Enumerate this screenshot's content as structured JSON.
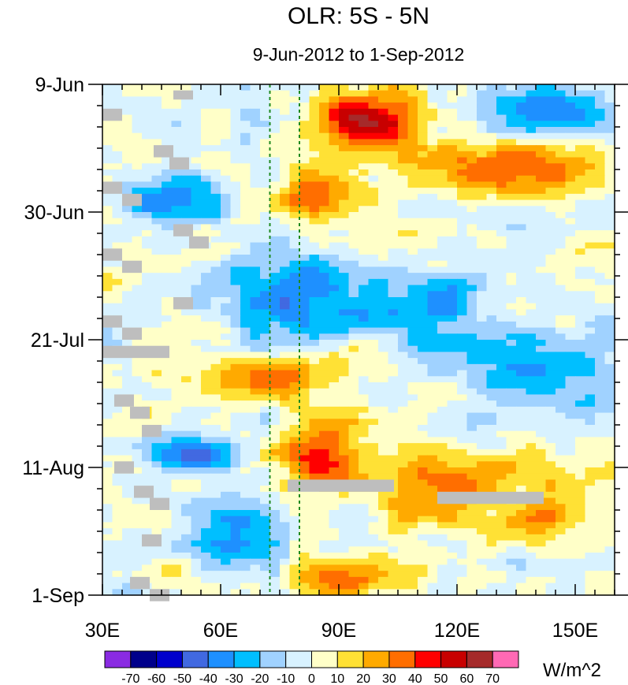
{
  "chart_data": {
    "type": "heatmap",
    "title": "OLR: 5S - 5N",
    "subtitle": "9-Jun-2012 to 1-Sep-2012",
    "x_axis": {
      "range": [
        30,
        160
      ],
      "ticks": [
        30,
        60,
        90,
        120,
        150
      ],
      "tick_labels": [
        "30E",
        "60E",
        "90E",
        "120E",
        "150E"
      ]
    },
    "y_axis": {
      "range_days": [
        0,
        84
      ],
      "ticks": [
        0,
        21,
        42,
        63,
        84
      ],
      "tick_labels": [
        "9-Jun",
        "30-Jun",
        "21-Jul",
        "11-Aug",
        "1-Sep"
      ]
    },
    "reference_lines": [
      72.5,
      80
    ],
    "colorbar": {
      "units": "W/m^2",
      "levels": [
        -70,
        -60,
        -50,
        -40,
        -30,
        -20,
        -10,
        0,
        10,
        20,
        30,
        40,
        50,
        60,
        70
      ],
      "level_labels": [
        "-70",
        "-60",
        "-50",
        "-40",
        "-30",
        "-20",
        "-10",
        "0",
        "10",
        "20",
        "30",
        "40",
        "50",
        "60",
        "70"
      ],
      "colors": [
        "#8a2be2",
        "#00008b",
        "#0000cd",
        "#4169e1",
        "#1e90ff",
        "#00bfff",
        "#a0d2ff",
        "#d8f2ff",
        "#ffffc8",
        "#ffe135",
        "#ffaa00",
        "#ff6e00",
        "#ff0000",
        "#c80000",
        "#a52a2a",
        "#ff69b4"
      ]
    },
    "missing_color": "#bebebe",
    "anomaly_features": [
      {
        "lon": [
          85,
          110
        ],
        "day": [
          0,
          12
        ],
        "value": 55
      },
      {
        "lon": [
          110,
          160
        ],
        "day": [
          10,
          18
        ],
        "value": 40
      },
      {
        "lon": [
          75,
          95
        ],
        "day": [
          14,
          22
        ],
        "value": 45
      },
      {
        "lon": [
          130,
          160
        ],
        "day": [
          0,
          8
        ],
        "value": -40
      },
      {
        "lon": [
          35,
          60
        ],
        "day": [
          15,
          22
        ],
        "value": -45
      },
      {
        "lon": [
          60,
          100
        ],
        "day": [
          28,
          42
        ],
        "value": -40
      },
      {
        "lon": [
          100,
          130
        ],
        "day": [
          30,
          45
        ],
        "value": -35
      },
      {
        "lon": [
          120,
          160
        ],
        "day": [
          40,
          55
        ],
        "value": -30
      },
      {
        "lon": [
          60,
          90
        ],
        "day": [
          45,
          52
        ],
        "value": 35
      },
      {
        "lon": [
          75,
          95
        ],
        "day": [
          55,
          66
        ],
        "value": 50
      },
      {
        "lon": [
          40,
          65
        ],
        "day": [
          58,
          63
        ],
        "value": -45
      },
      {
        "lon": [
          95,
          130
        ],
        "day": [
          60,
          70
        ],
        "value": 30
      },
      {
        "lon": [
          120,
          160
        ],
        "day": [
          62,
          76
        ],
        "value": 25
      },
      {
        "lon": [
          50,
          75
        ],
        "day": [
          68,
          80
        ],
        "value": -30
      },
      {
        "lon": [
          80,
          110
        ],
        "day": [
          78,
          84
        ],
        "value": 35
      }
    ],
    "missing_segments": [
      {
        "lon": [
          30,
          35
        ],
        "day": [
          4,
          6
        ]
      },
      {
        "lon": [
          48,
          53
        ],
        "day": [
          1,
          2.5
        ]
      },
      {
        "lon": [
          43,
          48
        ],
        "day": [
          10,
          12
        ]
      },
      {
        "lon": [
          47,
          52
        ],
        "day": [
          12,
          14
        ]
      },
      {
        "lon": [
          30,
          35
        ],
        "day": [
          16,
          18
        ]
      },
      {
        "lon": [
          35,
          40
        ],
        "day": [
          18,
          20
        ]
      },
      {
        "lon": [
          48,
          53
        ],
        "day": [
          23,
          25
        ]
      },
      {
        "lon": [
          52,
          57
        ],
        "day": [
          25,
          27
        ]
      },
      {
        "lon": [
          30,
          35
        ],
        "day": [
          27,
          29
        ]
      },
      {
        "lon": [
          35,
          40
        ],
        "day": [
          29,
          31
        ]
      },
      {
        "lon": [
          48,
          53
        ],
        "day": [
          35,
          37
        ]
      },
      {
        "lon": [
          30,
          35
        ],
        "day": [
          38,
          40
        ]
      },
      {
        "lon": [
          35,
          40
        ],
        "day": [
          40,
          42
        ]
      },
      {
        "lon": [
          30,
          47
        ],
        "day": [
          43,
          45
        ]
      },
      {
        "lon": [
          33,
          38
        ],
        "day": [
          51,
          53
        ]
      },
      {
        "lon": [
          37,
          42
        ],
        "day": [
          53,
          55
        ]
      },
      {
        "lon": [
          40,
          45
        ],
        "day": [
          56,
          58
        ]
      },
      {
        "lon": [
          33,
          38
        ],
        "day": [
          62,
          64
        ]
      },
      {
        "lon": [
          38,
          43
        ],
        "day": [
          66,
          68
        ]
      },
      {
        "lon": [
          42,
          47
        ],
        "day": [
          68,
          70
        ]
      },
      {
        "lon": [
          40,
          45
        ],
        "day": [
          74,
          76
        ]
      },
      {
        "lon": [
          37,
          42
        ],
        "day": [
          81,
          83
        ]
      },
      {
        "lon": [
          42,
          47
        ],
        "day": [
          83,
          85
        ]
      },
      {
        "lon": [
          77,
          104
        ],
        "day": [
          65,
          67
        ]
      },
      {
        "lon": [
          115,
          142
        ],
        "day": [
          67,
          69
        ]
      }
    ]
  }
}
